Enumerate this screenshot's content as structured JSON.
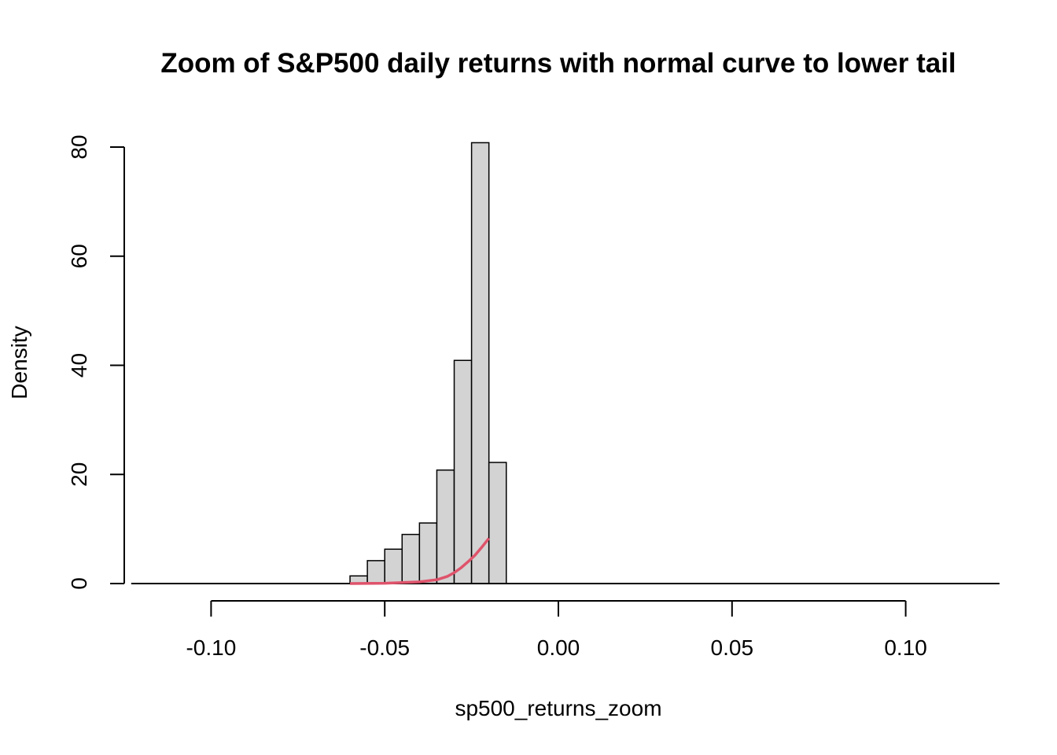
{
  "chart_data": {
    "type": "histogram",
    "title": "Zoom of S&P500 daily returns with normal curve to lower tail",
    "xlabel": "sp500_returns_zoom",
    "ylabel": "Density",
    "xlim": [
      -0.125,
      0.125
    ],
    "ylim": [
      0,
      80
    ],
    "xticks": [
      -0.1,
      -0.05,
      0.0,
      0.05,
      0.1
    ],
    "xtick_labels": [
      "-0.10",
      "-0.05",
      "0.00",
      "0.05",
      "0.10"
    ],
    "yticks": [
      0,
      20,
      40,
      60,
      80
    ],
    "ytick_labels": [
      "0",
      "20",
      "40",
      "60",
      "80"
    ],
    "bin_width": 0.005,
    "bins": [
      {
        "x0": -0.06,
        "x1": -0.055,
        "density": 1.4
      },
      {
        "x0": -0.055,
        "x1": -0.05,
        "density": 4.2
      },
      {
        "x0": -0.05,
        "x1": -0.045,
        "density": 6.3
      },
      {
        "x0": -0.045,
        "x1": -0.04,
        "density": 9.0
      },
      {
        "x0": -0.04,
        "x1": -0.035,
        "density": 11.1
      },
      {
        "x0": -0.035,
        "x1": -0.03,
        "density": 20.8
      },
      {
        "x0": -0.03,
        "x1": -0.025,
        "density": 40.9
      },
      {
        "x0": -0.025,
        "x1": -0.02,
        "density": 80.8
      },
      {
        "x0": -0.02,
        "x1": -0.015,
        "density": 22.2
      }
    ],
    "baseline_range": [
      -0.123,
      0.127
    ],
    "curve": {
      "name": "normal curve",
      "color": "#DF536B",
      "x": [
        -0.06,
        -0.05,
        -0.04,
        -0.035,
        -0.032,
        -0.03,
        -0.028,
        -0.026,
        -0.024,
        -0.022,
        -0.02
      ],
      "y": [
        0.0,
        0.05,
        0.3,
        0.7,
        1.3,
        2.0,
        2.9,
        4.0,
        5.2,
        6.7,
        8.3
      ]
    },
    "bar_fill": "#D3D3D3",
    "bar_stroke": "#000000"
  }
}
